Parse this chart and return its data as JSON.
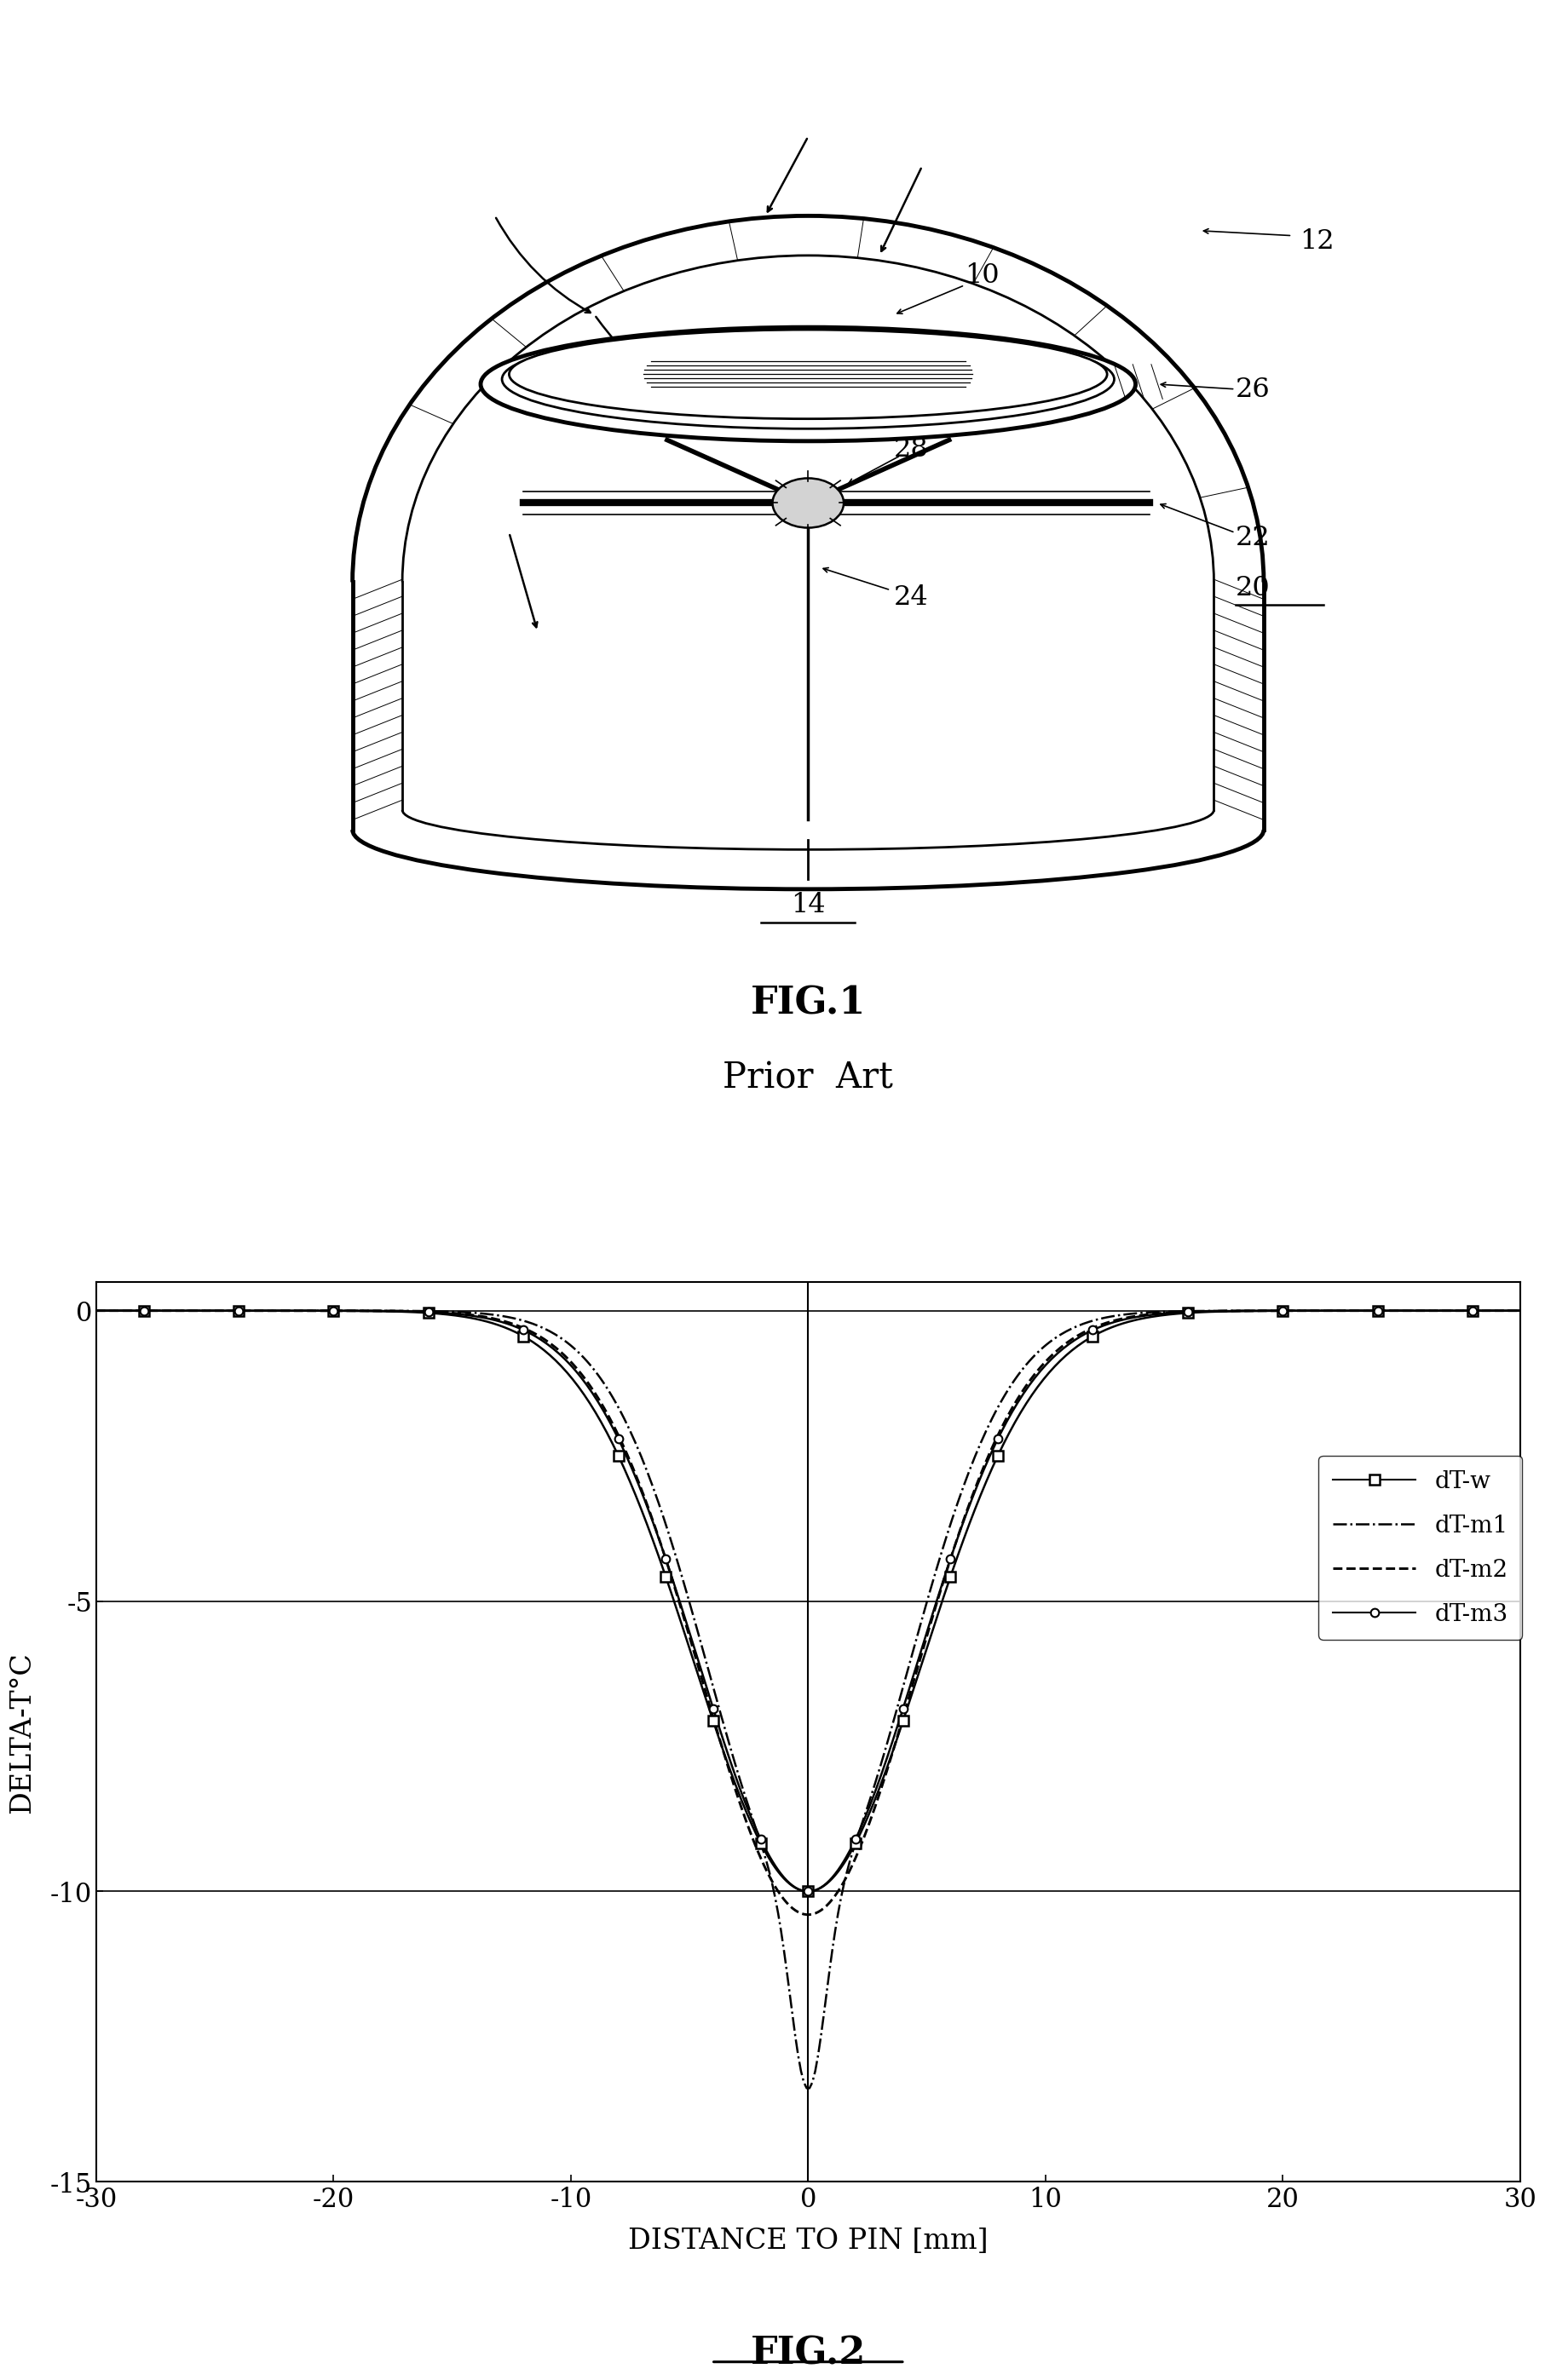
{
  "fig1_title": "FIG.1",
  "fig1_subtitle": "Prior  Art",
  "fig2_title": "FIG.2",
  "xlabel": "DISTANCE TO PIN [mm]",
  "ylabel": "DELTA-T°C",
  "xlim": [
    -30,
    30
  ],
  "ylim": [
    -15,
    0.5
  ],
  "yticks": [
    0,
    -5,
    -10,
    -15
  ],
  "xticks": [
    -30,
    -20,
    -10,
    0,
    10,
    20,
    30
  ],
  "legend_entries": [
    "dT-w",
    "dT-m1",
    "dT-m2",
    "dT-m3"
  ],
  "line_color": "#000000",
  "bg_color": "#ffffff",
  "fig_width": 19.89,
  "fig_height": 27.74
}
